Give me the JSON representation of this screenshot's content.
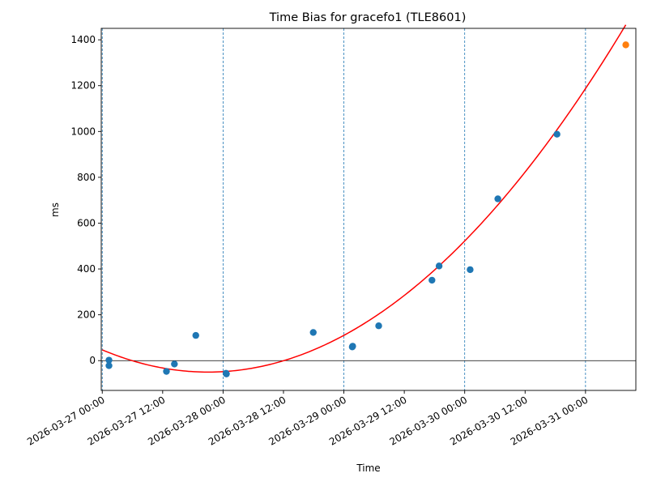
{
  "chart_data": {
    "type": "scatter",
    "title": "Time Bias for gracefo1 (TLE8601)",
    "xlabel": "Time",
    "ylabel": "ms",
    "xlim": [
      "2026-03-26T23:48",
      "2026-03-31T10:00"
    ],
    "ylim": [
      -130,
      1450
    ],
    "x_ticks": [
      {
        "t": "2026-03-27T00:00",
        "label": "2026-03-27 00:00"
      },
      {
        "t": "2026-03-27T12:00",
        "label": "2026-03-27 12:00"
      },
      {
        "t": "2026-03-28T00:00",
        "label": "2026-03-28 00:00"
      },
      {
        "t": "2026-03-28T12:00",
        "label": "2026-03-28 12:00"
      },
      {
        "t": "2026-03-29T00:00",
        "label": "2026-03-29 00:00"
      },
      {
        "t": "2026-03-29T12:00",
        "label": "2026-03-29 12:00"
      },
      {
        "t": "2026-03-30T00:00",
        "label": "2026-03-30 00:00"
      },
      {
        "t": "2026-03-30T12:00",
        "label": "2026-03-30 12:00"
      },
      {
        "t": "2026-03-31T00:00",
        "label": "2026-03-31 00:00"
      }
    ],
    "y_ticks": [
      0,
      200,
      400,
      600,
      800,
      1000,
      1200,
      1400
    ],
    "day_lines": [
      "2026-03-27T00:00",
      "2026-03-28T00:00",
      "2026-03-29T00:00",
      "2026-03-30T00:00",
      "2026-03-31T00:00"
    ],
    "zero_line": true,
    "series": [
      {
        "color": "#1f77b4",
        "points": [
          {
            "x": "2026-03-27T01:20",
            "y": 2
          },
          {
            "x": "2026-03-27T01:20",
            "y": -22
          },
          {
            "x": "2026-03-27T12:45",
            "y": -47
          },
          {
            "x": "2026-03-27T14:20",
            "y": -15
          },
          {
            "x": "2026-03-27T18:35",
            "y": 110
          },
          {
            "x": "2026-03-28T00:35",
            "y": -55
          },
          {
            "x": "2026-03-28T00:40",
            "y": -58
          },
          {
            "x": "2026-03-28T17:55",
            "y": 123
          },
          {
            "x": "2026-03-29T01:40",
            "y": 60
          },
          {
            "x": "2026-03-29T01:45",
            "y": 63
          },
          {
            "x": "2026-03-29T06:55",
            "y": 152
          },
          {
            "x": "2026-03-29T17:30",
            "y": 351
          },
          {
            "x": "2026-03-29T18:55",
            "y": 413
          },
          {
            "x": "2026-03-30T01:05",
            "y": 397
          },
          {
            "x": "2026-03-30T06:35",
            "y": 706
          },
          {
            "x": "2026-03-30T18:20",
            "y": 988
          }
        ]
      },
      {
        "color": "#ff7f0e",
        "points": [
          {
            "x": "2026-03-31T08:00",
            "y": 1378
          }
        ]
      }
    ],
    "fit": {
      "color": "#ff0000",
      "x_start": "2026-03-27T00:00",
      "x_end": "2026-03-31T08:00",
      "quadratic": {
        "vertex_x": "2026-03-27T21:00",
        "vertex_y": -50,
        "y_at_start": 47
      }
    }
  }
}
